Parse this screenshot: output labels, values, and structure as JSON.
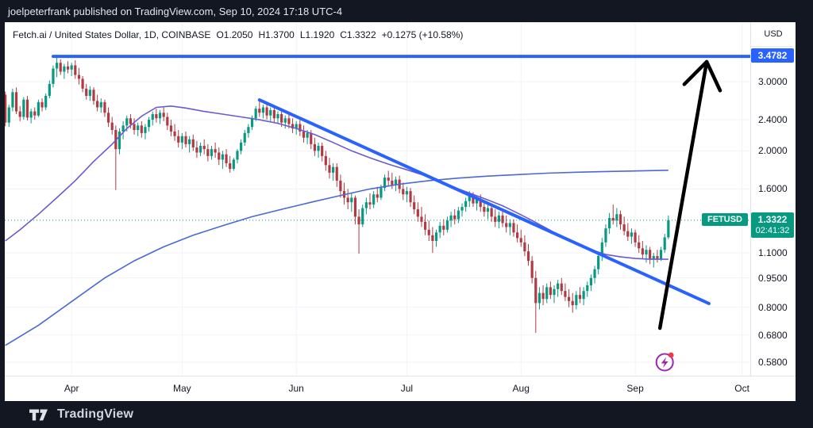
{
  "top_bar": {
    "text": "joelpeterfrank published on TradingView.com, Sep 10, 2024 17:18 UTC-4"
  },
  "header": {
    "title": "Fetch.ai / United States Dollar, 1D, COINBASE",
    "values": [
      "O1.2050",
      "H1.3700",
      "L1.1920",
      "C1.3322",
      "+0.1275 (+10.58%)"
    ]
  },
  "price_axis": {
    "currency_label": "USD",
    "ticks": [
      {
        "price": 3.0,
        "label": "3.0000"
      },
      {
        "price": 2.4,
        "label": "2.4000"
      },
      {
        "price": 2.0,
        "label": "2.0000"
      },
      {
        "price": 1.6,
        "label": "1.6000"
      },
      {
        "price": 1.1,
        "label": "1.1000"
      },
      {
        "price": 0.95,
        "label": "0.9500"
      },
      {
        "price": 0.8,
        "label": "0.8000"
      },
      {
        "price": 0.68,
        "label": "0.6800"
      },
      {
        "price": 0.58,
        "label": "0.5800"
      }
    ],
    "line_price_label": {
      "price": 3.4782,
      "label": "3.4782"
    },
    "last_price_label": {
      "price": 1.3322,
      "label": "1.3322",
      "countdown": "02:41:32",
      "symbol_tag": "FETUSD"
    }
  },
  "time_axis": {
    "months": [
      {
        "label": "Apr",
        "day": 19
      },
      {
        "label": "May",
        "day": 49
      },
      {
        "label": "Jun",
        "day": 80
      },
      {
        "label": "Jul",
        "day": 110
      },
      {
        "label": "Aug",
        "day": 141
      },
      {
        "label": "Sep",
        "day": 172
      },
      {
        "label": "Oct",
        "day": 201
      }
    ]
  },
  "footer": {
    "brand": "TradingView"
  },
  "colors": {
    "page_bg": "#131722",
    "card_bg": "#ffffff",
    "up": "#089981",
    "down": "#b13a42",
    "ma_fast": "#6a5acd",
    "ma_slow": "#4a69d2",
    "trendline": "#2962ff",
    "horizontal_line": "#2962ff",
    "current_price": "#089981",
    "grid": "#f0f3fa",
    "axis_text": "#131722",
    "arrow": "#000000",
    "icon_purple": "#9c27b0",
    "icon_dot": "#f23645"
  },
  "chart_data": {
    "type": "candlestick",
    "title": "Fetch.ai / United States Dollar, 1D, COINBASE",
    "symbol": "FETUSD",
    "interval": "1D",
    "exchange": "COINBASE",
    "y_scale": "log",
    "ylim": [
      0.55,
      3.6
    ],
    "x_unit": "day_index_from_2024-03-13",
    "last_ohlc": {
      "open": 1.205,
      "high": 1.37,
      "low": 1.192,
      "close": 1.3322,
      "change": "+0.1275 (+10.58%)"
    },
    "candles": [
      [
        2.78,
        2.83,
        2.31,
        2.36
      ],
      [
        2.36,
        2.62,
        2.3,
        2.58
      ],
      [
        2.58,
        2.88,
        2.52,
        2.82
      ],
      [
        2.82,
        2.9,
        2.48,
        2.52
      ],
      [
        2.52,
        2.6,
        2.38,
        2.44
      ],
      [
        2.44,
        2.74,
        2.4,
        2.7
      ],
      [
        2.7,
        2.76,
        2.39,
        2.43
      ],
      [
        2.43,
        2.56,
        2.35,
        2.52
      ],
      [
        2.52,
        2.58,
        2.4,
        2.46
      ],
      [
        2.46,
        2.7,
        2.44,
        2.66
      ],
      [
        2.66,
        2.72,
        2.52,
        2.58
      ],
      [
        2.58,
        2.8,
        2.54,
        2.76
      ],
      [
        2.76,
        3.02,
        2.72,
        2.96
      ],
      [
        2.96,
        3.3,
        2.9,
        3.24
      ],
      [
        3.24,
        3.478,
        3.08,
        3.35
      ],
      [
        3.35,
        3.42,
        3.12,
        3.18
      ],
      [
        3.18,
        3.33,
        3.05,
        3.28
      ],
      [
        3.28,
        3.38,
        3.15,
        3.22
      ],
      [
        3.22,
        3.35,
        3.1,
        3.3
      ],
      [
        3.3,
        3.4,
        3.05,
        3.12
      ],
      [
        3.12,
        3.25,
        2.95,
        3.05
      ],
      [
        3.05,
        3.1,
        2.82,
        2.88
      ],
      [
        2.88,
        2.96,
        2.7,
        2.76
      ],
      [
        2.76,
        2.92,
        2.68,
        2.86
      ],
      [
        2.86,
        2.9,
        2.62,
        2.68
      ],
      [
        2.68,
        2.78,
        2.52,
        2.58
      ],
      [
        2.58,
        2.72,
        2.5,
        2.66
      ],
      [
        2.66,
        2.7,
        2.44,
        2.5
      ],
      [
        2.5,
        2.58,
        2.3,
        2.36
      ],
      [
        2.36,
        2.44,
        2.2,
        2.26
      ],
      [
        2.26,
        2.32,
        1.59,
        2.02
      ],
      [
        2.02,
        2.28,
        1.96,
        2.24
      ],
      [
        2.24,
        2.38,
        2.14,
        2.32
      ],
      [
        2.32,
        2.46,
        2.24,
        2.42
      ],
      [
        2.42,
        2.48,
        2.28,
        2.34
      ],
      [
        2.34,
        2.42,
        2.2,
        2.26
      ],
      [
        2.26,
        2.36,
        2.18,
        2.32
      ],
      [
        2.32,
        2.38,
        2.16,
        2.22
      ],
      [
        2.22,
        2.34,
        2.14,
        2.3
      ],
      [
        2.3,
        2.44,
        2.24,
        2.4
      ],
      [
        2.4,
        2.52,
        2.32,
        2.48
      ],
      [
        2.48,
        2.56,
        2.36,
        2.42
      ],
      [
        2.42,
        2.54,
        2.34,
        2.5
      ],
      [
        2.5,
        2.58,
        2.38,
        2.44
      ],
      [
        2.44,
        2.5,
        2.26,
        2.32
      ],
      [
        2.32,
        2.4,
        2.18,
        2.24
      ],
      [
        2.24,
        2.34,
        2.12,
        2.18
      ],
      [
        2.18,
        2.26,
        2.04,
        2.1
      ],
      [
        2.1,
        2.22,
        2.02,
        2.18
      ],
      [
        2.18,
        2.24,
        2.04,
        2.08
      ],
      [
        2.08,
        2.18,
        1.98,
        2.14
      ],
      [
        2.14,
        2.2,
        2.0,
        2.04
      ],
      [
        2.04,
        2.12,
        1.92,
        1.98
      ],
      [
        1.98,
        2.1,
        1.94,
        2.06
      ],
      [
        2.06,
        2.14,
        1.96,
        2.02
      ],
      [
        2.02,
        2.08,
        1.88,
        1.94
      ],
      [
        1.94,
        2.06,
        1.9,
        2.02
      ],
      [
        2.02,
        2.1,
        1.92,
        1.98
      ],
      [
        1.98,
        2.04,
        1.84,
        1.9
      ],
      [
        1.9,
        2.0,
        1.8,
        1.96
      ],
      [
        1.96,
        2.02,
        1.82,
        1.86
      ],
      [
        1.86,
        1.94,
        1.76,
        1.8
      ],
      [
        1.8,
        1.92,
        1.78,
        1.9
      ],
      [
        1.9,
        2.02,
        1.86,
        2.0
      ],
      [
        2.0,
        2.14,
        1.96,
        2.1
      ],
      [
        2.1,
        2.26,
        2.06,
        2.22
      ],
      [
        2.22,
        2.34,
        2.16,
        2.3
      ],
      [
        2.3,
        2.46,
        2.26,
        2.42
      ],
      [
        2.42,
        2.6,
        2.38,
        2.56
      ],
      [
        2.56,
        2.7,
        2.44,
        2.5
      ],
      [
        2.5,
        2.62,
        2.42,
        2.58
      ],
      [
        2.58,
        2.64,
        2.4,
        2.46
      ],
      [
        2.46,
        2.58,
        2.38,
        2.54
      ],
      [
        2.54,
        2.58,
        2.36,
        2.42
      ],
      [
        2.42,
        2.52,
        2.34,
        2.48
      ],
      [
        2.48,
        2.52,
        2.3,
        2.36
      ],
      [
        2.36,
        2.46,
        2.28,
        2.42
      ],
      [
        2.42,
        2.48,
        2.28,
        2.34
      ],
      [
        2.34,
        2.42,
        2.22,
        2.28
      ],
      [
        2.28,
        2.38,
        2.2,
        2.34
      ],
      [
        2.34,
        2.4,
        2.18,
        2.24
      ],
      [
        2.24,
        2.32,
        2.1,
        2.16
      ],
      [
        2.16,
        2.26,
        2.08,
        2.22
      ],
      [
        2.22,
        2.26,
        2.02,
        2.08
      ],
      [
        2.08,
        2.16,
        1.94,
        2.0
      ],
      [
        2.0,
        2.1,
        1.92,
        2.06
      ],
      [
        2.06,
        2.1,
        1.88,
        1.94
      ],
      [
        1.94,
        2.0,
        1.78,
        1.84
      ],
      [
        1.84,
        1.92,
        1.7,
        1.76
      ],
      [
        1.76,
        1.86,
        1.68,
        1.82
      ],
      [
        1.82,
        1.86,
        1.62,
        1.68
      ],
      [
        1.68,
        1.74,
        1.52,
        1.58
      ],
      [
        1.58,
        1.66,
        1.46,
        1.52
      ],
      [
        1.52,
        1.6,
        1.42,
        1.48
      ],
      [
        1.48,
        1.56,
        1.4,
        1.52
      ],
      [
        1.52,
        1.54,
        1.3,
        1.36
      ],
      [
        1.36,
        1.42,
        1.095,
        1.3
      ],
      [
        1.3,
        1.46,
        1.28,
        1.43
      ],
      [
        1.43,
        1.52,
        1.38,
        1.48
      ],
      [
        1.48,
        1.56,
        1.42,
        1.46
      ],
      [
        1.46,
        1.58,
        1.43,
        1.55
      ],
      [
        1.55,
        1.62,
        1.48,
        1.52
      ],
      [
        1.52,
        1.64,
        1.5,
        1.61
      ],
      [
        1.61,
        1.74,
        1.58,
        1.71
      ],
      [
        1.71,
        1.78,
        1.63,
        1.68
      ],
      [
        1.68,
        1.76,
        1.6,
        1.64
      ],
      [
        1.64,
        1.72,
        1.58,
        1.69
      ],
      [
        1.69,
        1.73,
        1.56,
        1.6
      ],
      [
        1.6,
        1.66,
        1.5,
        1.55
      ],
      [
        1.55,
        1.62,
        1.48,
        1.58
      ],
      [
        1.58,
        1.61,
        1.44,
        1.48
      ],
      [
        1.48,
        1.54,
        1.38,
        1.42
      ],
      [
        1.42,
        1.48,
        1.32,
        1.36
      ],
      [
        1.36,
        1.44,
        1.28,
        1.32
      ],
      [
        1.32,
        1.38,
        1.22,
        1.26
      ],
      [
        1.26,
        1.33,
        1.18,
        1.22
      ],
      [
        1.22,
        1.28,
        1.1,
        1.18
      ],
      [
        1.18,
        1.26,
        1.14,
        1.24
      ],
      [
        1.24,
        1.32,
        1.2,
        1.29
      ],
      [
        1.29,
        1.34,
        1.22,
        1.26
      ],
      [
        1.26,
        1.36,
        1.24,
        1.33
      ],
      [
        1.33,
        1.4,
        1.28,
        1.37
      ],
      [
        1.37,
        1.42,
        1.3,
        1.34
      ],
      [
        1.34,
        1.44,
        1.31,
        1.41
      ],
      [
        1.41,
        1.47,
        1.36,
        1.44
      ],
      [
        1.44,
        1.52,
        1.4,
        1.49
      ],
      [
        1.49,
        1.58,
        1.44,
        1.54
      ],
      [
        1.54,
        1.57,
        1.44,
        1.47
      ],
      [
        1.47,
        1.54,
        1.41,
        1.51
      ],
      [
        1.51,
        1.55,
        1.4,
        1.44
      ],
      [
        1.44,
        1.5,
        1.36,
        1.4
      ],
      [
        1.4,
        1.47,
        1.34,
        1.43
      ],
      [
        1.43,
        1.46,
        1.32,
        1.36
      ],
      [
        1.36,
        1.42,
        1.28,
        1.32
      ],
      [
        1.32,
        1.4,
        1.27,
        1.37
      ],
      [
        1.37,
        1.41,
        1.28,
        1.31
      ],
      [
        1.31,
        1.37,
        1.24,
        1.28
      ],
      [
        1.28,
        1.34,
        1.22,
        1.31
      ],
      [
        1.31,
        1.34,
        1.21,
        1.24
      ],
      [
        1.24,
        1.3,
        1.17,
        1.2
      ],
      [
        1.2,
        1.26,
        1.14,
        1.17
      ],
      [
        1.17,
        1.22,
        1.08,
        1.11
      ],
      [
        1.11,
        1.16,
        1.02,
        1.05
      ],
      [
        1.05,
        1.08,
        0.92,
        0.95
      ],
      [
        0.95,
        0.99,
        0.689,
        0.82
      ],
      [
        0.82,
        0.9,
        0.79,
        0.87
      ],
      [
        0.87,
        0.91,
        0.81,
        0.84
      ],
      [
        0.84,
        0.92,
        0.82,
        0.9
      ],
      [
        0.9,
        0.93,
        0.84,
        0.86
      ],
      [
        0.86,
        0.91,
        0.82,
        0.89
      ],
      [
        0.89,
        0.94,
        0.85,
        0.92
      ],
      [
        0.92,
        0.95,
        0.86,
        0.88
      ],
      [
        0.88,
        0.92,
        0.83,
        0.85
      ],
      [
        0.85,
        0.89,
        0.8,
        0.83
      ],
      [
        0.83,
        0.87,
        0.775,
        0.81
      ],
      [
        0.81,
        0.88,
        0.79,
        0.86
      ],
      [
        0.86,
        0.9,
        0.82,
        0.84
      ],
      [
        0.84,
        0.9,
        0.81,
        0.88
      ],
      [
        0.88,
        0.93,
        0.85,
        0.91
      ],
      [
        0.91,
        0.97,
        0.88,
        0.95
      ],
      [
        0.95,
        1.02,
        0.92,
        1.0
      ],
      [
        1.0,
        1.1,
        0.97,
        1.08
      ],
      [
        1.08,
        1.2,
        1.05,
        1.17
      ],
      [
        1.17,
        1.3,
        1.14,
        1.27
      ],
      [
        1.27,
        1.39,
        1.23,
        1.35
      ],
      [
        1.35,
        1.46,
        1.3,
        1.33
      ],
      [
        1.33,
        1.43,
        1.28,
        1.38
      ],
      [
        1.38,
        1.41,
        1.26,
        1.3
      ],
      [
        1.3,
        1.36,
        1.22,
        1.25
      ],
      [
        1.25,
        1.31,
        1.18,
        1.21
      ],
      [
        1.21,
        1.27,
        1.16,
        1.24
      ],
      [
        1.24,
        1.26,
        1.14,
        1.17
      ],
      [
        1.17,
        1.22,
        1.1,
        1.13
      ],
      [
        1.13,
        1.18,
        1.06,
        1.09
      ],
      [
        1.09,
        1.15,
        1.04,
        1.12
      ],
      [
        1.12,
        1.14,
        1.03,
        1.06
      ],
      [
        1.06,
        1.1,
        1.01,
        1.08
      ],
      [
        1.08,
        1.12,
        1.04,
        1.06
      ],
      [
        1.06,
        1.14,
        1.05,
        1.12
      ],
      [
        1.12,
        1.23,
        1.1,
        1.205
      ],
      [
        1.205,
        1.37,
        1.192,
        1.3322
      ]
    ],
    "series": [
      {
        "name": "ma_fast",
        "points": [
          [
            1,
            1.18
          ],
          [
            5,
            1.26
          ],
          [
            10,
            1.38
          ],
          [
            15,
            1.52
          ],
          [
            20,
            1.68
          ],
          [
            25,
            1.88
          ],
          [
            30,
            2.08
          ],
          [
            34,
            2.28
          ],
          [
            38,
            2.45
          ],
          [
            42,
            2.58
          ],
          [
            46,
            2.6
          ],
          [
            50,
            2.57
          ],
          [
            55,
            2.52
          ],
          [
            60,
            2.48
          ],
          [
            65,
            2.44
          ],
          [
            70,
            2.4
          ],
          [
            75,
            2.35
          ],
          [
            80,
            2.28
          ],
          [
            85,
            2.2
          ],
          [
            90,
            2.1
          ],
          [
            95,
            2.0
          ],
          [
            100,
            1.92
          ],
          [
            105,
            1.85
          ],
          [
            110,
            1.79
          ],
          [
            115,
            1.73
          ],
          [
            120,
            1.66
          ],
          [
            124,
            1.6
          ],
          [
            128,
            1.55
          ],
          [
            132,
            1.5
          ],
          [
            136,
            1.45
          ],
          [
            140,
            1.39
          ],
          [
            144,
            1.33
          ],
          [
            148,
            1.27
          ],
          [
            152,
            1.21
          ],
          [
            156,
            1.16
          ],
          [
            160,
            1.12
          ],
          [
            164,
            1.09
          ],
          [
            168,
            1.075
          ],
          [
            172,
            1.065
          ],
          [
            176,
            1.06
          ],
          [
            181,
            1.06
          ]
        ]
      },
      {
        "name": "ma_slow",
        "points": [
          [
            1,
            0.64
          ],
          [
            10,
            0.72
          ],
          [
            20,
            0.84
          ],
          [
            28,
            0.95
          ],
          [
            36,
            1.05
          ],
          [
            44,
            1.14
          ],
          [
            52,
            1.22
          ],
          [
            60,
            1.29
          ],
          [
            68,
            1.36
          ],
          [
            76,
            1.42
          ],
          [
            84,
            1.48
          ],
          [
            92,
            1.54
          ],
          [
            100,
            1.6
          ],
          [
            108,
            1.645
          ],
          [
            116,
            1.68
          ],
          [
            124,
            1.705
          ],
          [
            132,
            1.725
          ],
          [
            140,
            1.74
          ],
          [
            148,
            1.755
          ],
          [
            156,
            1.765
          ],
          [
            164,
            1.772
          ],
          [
            172,
            1.778
          ],
          [
            181,
            1.785
          ]
        ]
      }
    ],
    "drawings": {
      "horizontal_ray": {
        "price": 3.4782,
        "from_day": 14
      },
      "trendline": {
        "from_day": 70,
        "from_price": 2.696,
        "to_day": 192,
        "to_price": 0.818
      },
      "current_price_line": {
        "price": 1.3322
      },
      "arrow": {
        "from_day": 178.7,
        "from_price": 0.708,
        "to_day": 191.4,
        "to_price": 3.369
      },
      "flash_icon": {
        "day": 180,
        "price": 0.58
      }
    }
  }
}
